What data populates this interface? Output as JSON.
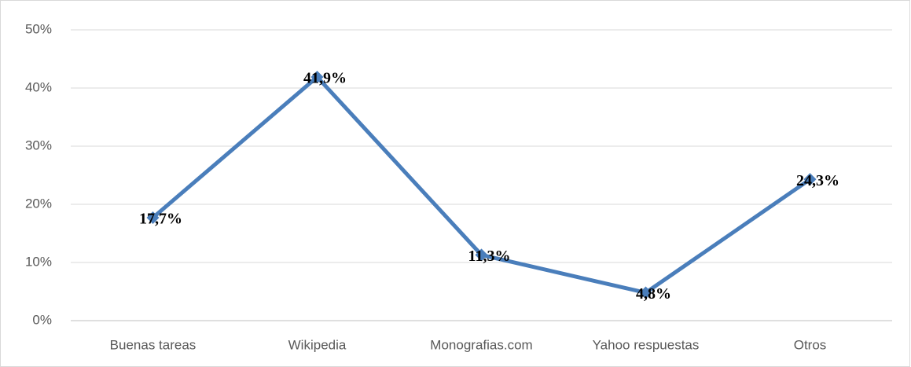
{
  "chart_data": {
    "type": "line",
    "categories": [
      "Buenas tareas",
      "Wikipedia",
      "Monografias.com",
      "Yahoo respuestas",
      "Otros"
    ],
    "series": [
      {
        "name": null,
        "color": "#4a7ebb",
        "values": [
          17.7,
          41.9,
          11.3,
          4.8,
          24.3
        ],
        "value_labels": [
          "17,7%",
          "41,9%",
          "11,3%",
          "4,8%",
          "24,3%"
        ]
      }
    ],
    "ylim": [
      0,
      50
    ],
    "yticks": [
      {
        "value": 0,
        "label": "0%"
      },
      {
        "value": 10,
        "label": "10%"
      },
      {
        "value": 20,
        "label": "20%"
      },
      {
        "value": 30,
        "label": "30%"
      },
      {
        "value": 40,
        "label": "40%"
      },
      {
        "value": 50,
        "label": "50%"
      }
    ],
    "grid": true
  }
}
